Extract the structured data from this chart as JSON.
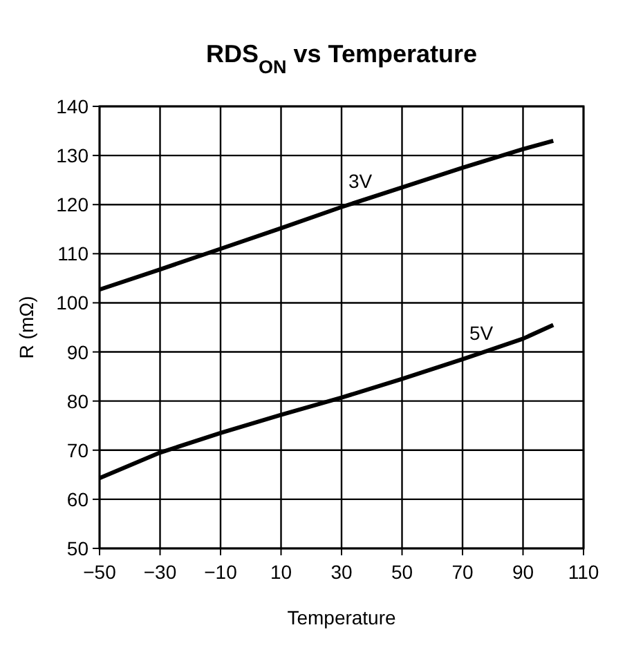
{
  "chart_data": {
    "type": "line",
    "title": "RDS$_{ON}$ vs Temperature",
    "xlabel": "Temperature",
    "ylabel": "R (mΩ)",
    "x": [
      -50,
      -30,
      -10,
      10,
      30,
      50,
      70,
      90,
      100
    ],
    "series": [
      {
        "name": "3V",
        "color": "#000000",
        "values": [
          102.7,
          106.8,
          111,
          115.2,
          119.5,
          123.5,
          127.5,
          131.3,
          133
        ]
      },
      {
        "name": "5V",
        "color": "#000000",
        "values": [
          64.3,
          69.5,
          73.5,
          77.2,
          80.7,
          84.5,
          88.5,
          92.7,
          95.5
        ]
      }
    ],
    "xlim": [
      -50,
      110
    ],
    "xticks": [
      -50,
      -30,
      -10,
      10,
      30,
      50,
      70,
      90,
      110
    ],
    "ylim": [
      50,
      140
    ],
    "yticks": [
      50,
      60,
      70,
      80,
      90,
      100,
      110,
      120,
      130,
      140
    ],
    "grid": true,
    "marker": "none",
    "line_style": "solid"
  }
}
